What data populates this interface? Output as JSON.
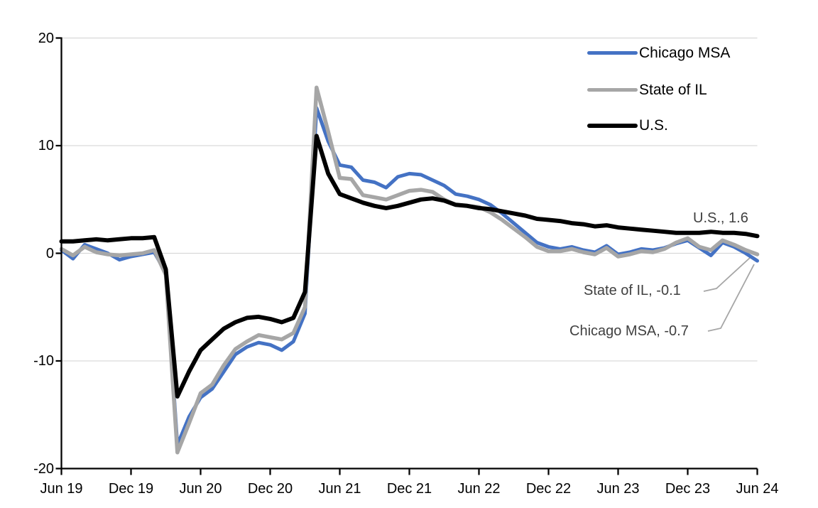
{
  "chart_data": {
    "type": "line",
    "title": "",
    "xlabel": "",
    "ylabel": "",
    "ylim": [
      -20,
      20
    ],
    "y_ticks": [
      20,
      10,
      0,
      -10,
      -20
    ],
    "y_tick_labels": [
      "20",
      "10",
      "0",
      "-10",
      "-20"
    ],
    "x_tick_labels": [
      "Jun 19",
      "Dec 19",
      "Jun 20",
      "Dec 20",
      "Jun 21",
      "Dec 21",
      "Jun 22",
      "Dec 22",
      "Jun 23",
      "Dec 23",
      "Jun 24"
    ],
    "x_tick_every_n_months": 6,
    "grid": "horizontal",
    "legend_position": "top-right",
    "x": [
      "Jun 2019",
      "Jul 2019",
      "Aug 2019",
      "Sep 2019",
      "Oct 2019",
      "Nov 2019",
      "Dec 2019",
      "Jan 2020",
      "Feb 2020",
      "Mar 2020",
      "Apr 2020",
      "May 2020",
      "Jun 2020",
      "Jul 2020",
      "Aug 2020",
      "Sep 2020",
      "Oct 2020",
      "Nov 2020",
      "Dec 2020",
      "Jan 2021",
      "Feb 2021",
      "Mar 2021",
      "Apr 2021",
      "May 2021",
      "Jun 2021",
      "Jul 2021",
      "Aug 2021",
      "Sep 2021",
      "Oct 2021",
      "Nov 2021",
      "Dec 2021",
      "Jan 2022",
      "Feb 2022",
      "Mar 2022",
      "Apr 2022",
      "May 2022",
      "Jun 2022",
      "Jul 2022",
      "Aug 2022",
      "Sep 2022",
      "Oct 2022",
      "Nov 2022",
      "Dec 2022",
      "Jan 2023",
      "Feb 2023",
      "Mar 2023",
      "Apr 2023",
      "May 2023",
      "Jun 2023",
      "Jul 2023",
      "Aug 2023",
      "Sep 2023",
      "Oct 2023",
      "Nov 2023",
      "Dec 2023",
      "Jan 2024",
      "Feb 2024",
      "Mar 2024",
      "Apr 2024",
      "May 2024",
      "Jun 2024"
    ],
    "series": [
      {
        "name": "Chicago MSA",
        "color": "#4472C4",
        "stroke_width": 5,
        "values": [
          0.3,
          -0.5,
          0.8,
          0.4,
          0.0,
          -0.6,
          -0.3,
          -0.1,
          0.1,
          -1.8,
          -17.8,
          -15.2,
          -13.4,
          -12.6,
          -11.0,
          -9.4,
          -8.7,
          -8.3,
          -8.5,
          -9.0,
          -8.2,
          -5.6,
          13.5,
          10.4,
          8.2,
          8.0,
          6.8,
          6.6,
          6.1,
          7.1,
          7.4,
          7.3,
          6.8,
          6.3,
          5.5,
          5.3,
          5.0,
          4.5,
          3.7,
          2.8,
          1.9,
          1.0,
          0.6,
          0.4,
          0.6,
          0.3,
          0.1,
          0.7,
          -0.1,
          0.1,
          0.4,
          0.3,
          0.5,
          0.9,
          1.2,
          0.5,
          -0.2,
          1.0,
          0.6,
          0.0,
          -0.7
        ]
      },
      {
        "name": "State of IL",
        "color": "#A6A6A6",
        "stroke_width": 5.5,
        "values": [
          0.4,
          -0.2,
          0.6,
          0.1,
          -0.1,
          -0.2,
          -0.1,
          0.0,
          0.3,
          -2.0,
          -18.5,
          -15.8,
          -13.0,
          -12.2,
          -10.4,
          -8.9,
          -8.2,
          -7.6,
          -7.8,
          -8.0,
          -7.4,
          -5.0,
          15.4,
          11.3,
          7.0,
          6.9,
          5.4,
          5.2,
          5.0,
          5.4,
          5.8,
          5.9,
          5.7,
          5.0,
          4.5,
          4.4,
          4.3,
          3.8,
          3.1,
          2.3,
          1.5,
          0.6,
          0.2,
          0.2,
          0.4,
          0.1,
          -0.1,
          0.5,
          -0.3,
          -0.1,
          0.2,
          0.1,
          0.4,
          1.0,
          1.4,
          0.6,
          0.3,
          1.2,
          0.8,
          0.3,
          -0.1
        ]
      },
      {
        "name": "U.S.",
        "color": "#000000",
        "stroke_width": 6,
        "values": [
          1.1,
          1.1,
          1.2,
          1.3,
          1.2,
          1.3,
          1.4,
          1.4,
          1.5,
          -1.5,
          -13.3,
          -11.0,
          -9.0,
          -8.0,
          -7.0,
          -6.4,
          -6.0,
          -5.9,
          -6.1,
          -6.4,
          -6.0,
          -3.6,
          10.9,
          7.4,
          5.5,
          5.1,
          4.7,
          4.4,
          4.2,
          4.4,
          4.7,
          5.0,
          5.1,
          4.9,
          4.5,
          4.4,
          4.2,
          4.1,
          3.9,
          3.7,
          3.5,
          3.2,
          3.1,
          3.0,
          2.8,
          2.7,
          2.5,
          2.6,
          2.4,
          2.3,
          2.2,
          2.1,
          2.0,
          1.9,
          1.9,
          1.9,
          2.0,
          1.9,
          1.9,
          1.8,
          1.6
        ]
      }
    ],
    "annotations": [
      {
        "id": "us",
        "text": "U.S., 1.6",
        "series": "U.S.",
        "value": 1.6
      },
      {
        "id": "il",
        "text": "State of IL, -0.1",
        "series": "State of IL",
        "value": -0.1
      },
      {
        "id": "chicago",
        "text": "Chicago MSA, -0.7",
        "series": "Chicago MSA",
        "value": -0.7
      }
    ]
  },
  "colors": {
    "background": "#FFFFFF",
    "gridline": "#D9D9D9",
    "axis": "#000000",
    "tick_text": "#000000",
    "legend_text": "#000000",
    "annotation_text": "#404040",
    "leader_line": "#A6A6A6"
  }
}
